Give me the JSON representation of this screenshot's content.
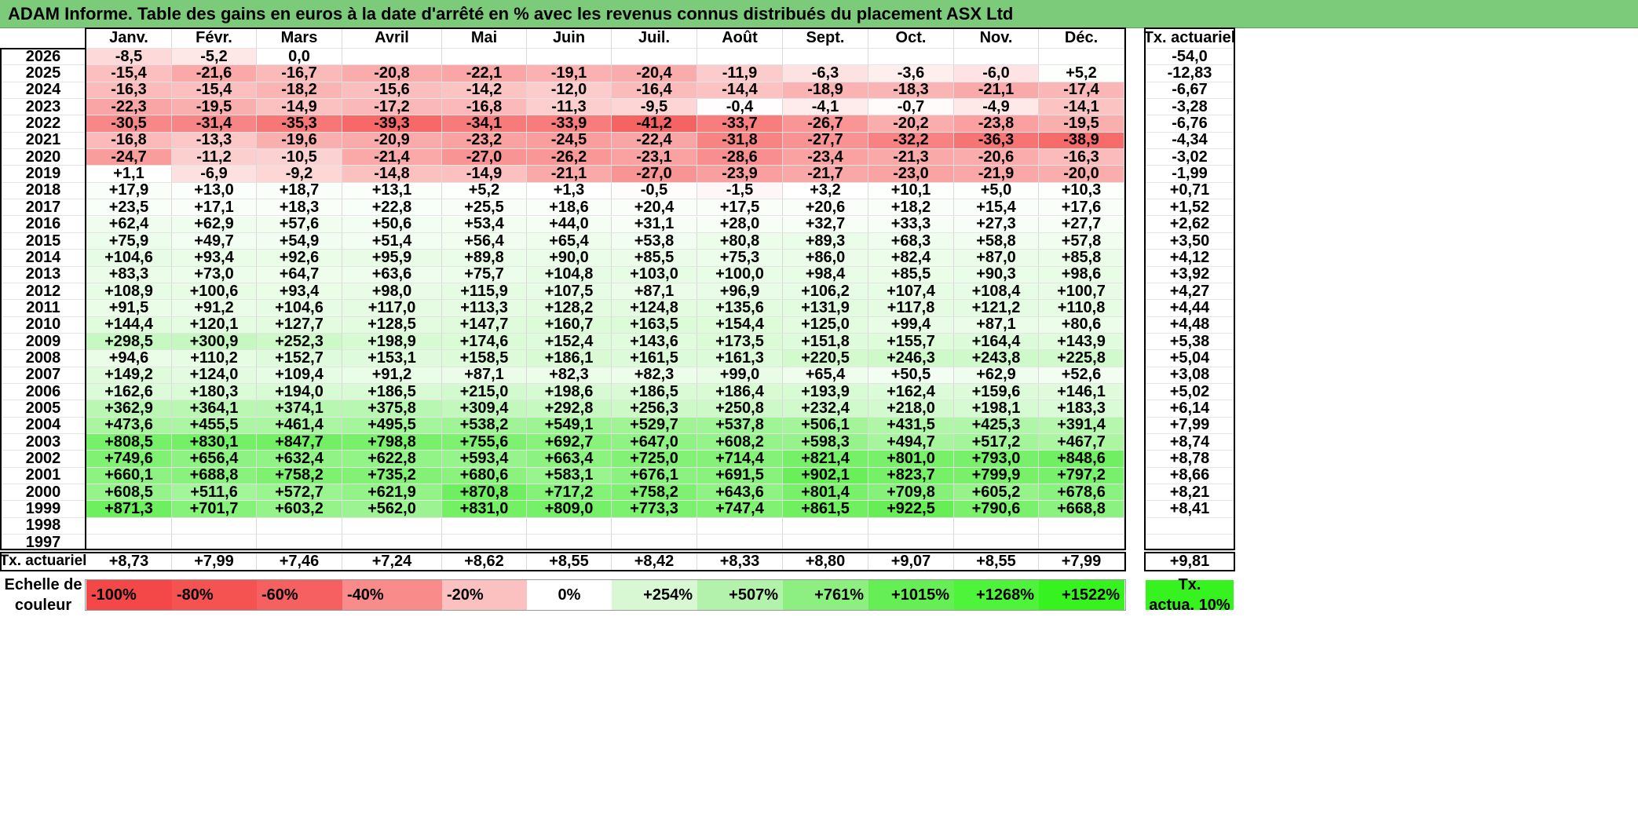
{
  "title": "ADAM Informe. Table des gains en euros à la date d'arrêté en % avec les revenus connus distribués du placement ASX Ltd",
  "months": [
    "Janv.",
    "Févr.",
    "Mars",
    "Avril",
    "Mai",
    "Juin",
    "Juil.",
    "Août",
    "Sept.",
    "Oct.",
    "Nov.",
    "Déc."
  ],
  "annual_header": "Tx. actuariel",
  "rows": [
    {
      "year": "2026",
      "values": [
        "-8,5",
        "-5,2",
        "0,0",
        "",
        "",
        "",
        "",
        "",
        "",
        "",
        "",
        ""
      ],
      "rate": "-54,0"
    },
    {
      "year": "2025",
      "values": [
        "-15,4",
        "-21,6",
        "-16,7",
        "-20,8",
        "-22,1",
        "-19,1",
        "-20,4",
        "-11,9",
        "-6,3",
        "-3,6",
        "-6,0",
        "+5,2"
      ],
      "rate": "-12,83"
    },
    {
      "year": "2024",
      "values": [
        "-16,3",
        "-15,4",
        "-18,2",
        "-15,6",
        "-14,2",
        "-12,0",
        "-16,4",
        "-14,4",
        "-18,9",
        "-18,3",
        "-21,1",
        "-17,4"
      ],
      "rate": "-6,67"
    },
    {
      "year": "2023",
      "values": [
        "-22,3",
        "-19,5",
        "-14,9",
        "-17,2",
        "-16,8",
        "-11,3",
        "-9,5",
        "-0,4",
        "-4,1",
        "-0,7",
        "-4,9",
        "-14,1"
      ],
      "rate": "-3,28"
    },
    {
      "year": "2022",
      "values": [
        "-30,5",
        "-31,4",
        "-35,3",
        "-39,3",
        "-34,1",
        "-33,9",
        "-41,2",
        "-33,7",
        "-26,7",
        "-20,2",
        "-23,8",
        "-19,5"
      ],
      "rate": "-6,76"
    },
    {
      "year": "2021",
      "values": [
        "-16,8",
        "-13,3",
        "-19,6",
        "-20,9",
        "-23,2",
        "-24,5",
        "-22,4",
        "-31,8",
        "-27,7",
        "-32,2",
        "-36,3",
        "-38,9"
      ],
      "rate": "-4,34"
    },
    {
      "year": "2020",
      "values": [
        "-24,7",
        "-11,2",
        "-10,5",
        "-21,4",
        "-27,0",
        "-26,2",
        "-23,1",
        "-28,6",
        "-23,4",
        "-21,3",
        "-20,6",
        "-16,3"
      ],
      "rate": "-3,02"
    },
    {
      "year": "2019",
      "values": [
        "+1,1",
        "-6,9",
        "-9,2",
        "-14,8",
        "-14,9",
        "-21,1",
        "-27,0",
        "-23,9",
        "-21,7",
        "-23,0",
        "-21,9",
        "-20,0"
      ],
      "rate": "-1,99"
    },
    {
      "year": "2018",
      "values": [
        "+17,9",
        "+13,0",
        "+18,7",
        "+13,1",
        "+5,2",
        "+1,3",
        "-0,5",
        "-1,5",
        "+3,2",
        "+10,1",
        "+5,0",
        "+10,3"
      ],
      "rate": "+0,71"
    },
    {
      "year": "2017",
      "values": [
        "+23,5",
        "+17,1",
        "+18,3",
        "+22,8",
        "+25,5",
        "+18,6",
        "+20,4",
        "+17,5",
        "+20,6",
        "+18,2",
        "+15,4",
        "+17,6"
      ],
      "rate": "+1,52"
    },
    {
      "year": "2016",
      "values": [
        "+62,4",
        "+62,9",
        "+57,6",
        "+50,6",
        "+53,4",
        "+44,0",
        "+31,1",
        "+28,0",
        "+32,7",
        "+33,3",
        "+27,3",
        "+27,7"
      ],
      "rate": "+2,62"
    },
    {
      "year": "2015",
      "values": [
        "+75,9",
        "+49,7",
        "+54,9",
        "+51,4",
        "+56,4",
        "+65,4",
        "+53,8",
        "+80,8",
        "+89,3",
        "+68,3",
        "+58,8",
        "+57,8"
      ],
      "rate": "+3,50"
    },
    {
      "year": "2014",
      "values": [
        "+104,6",
        "+93,4",
        "+92,6",
        "+95,9",
        "+89,8",
        "+90,0",
        "+85,5",
        "+75,3",
        "+86,0",
        "+82,4",
        "+87,0",
        "+85,8"
      ],
      "rate": "+4,12"
    },
    {
      "year": "2013",
      "values": [
        "+83,3",
        "+73,0",
        "+64,7",
        "+63,6",
        "+75,7",
        "+104,8",
        "+103,0",
        "+100,0",
        "+98,4",
        "+85,5",
        "+90,3",
        "+98,6"
      ],
      "rate": "+3,92"
    },
    {
      "year": "2012",
      "values": [
        "+108,9",
        "+100,6",
        "+93,4",
        "+98,0",
        "+115,9",
        "+107,5",
        "+87,1",
        "+96,9",
        "+106,2",
        "+107,4",
        "+108,4",
        "+100,7"
      ],
      "rate": "+4,27"
    },
    {
      "year": "2011",
      "values": [
        "+91,5",
        "+91,2",
        "+104,6",
        "+117,0",
        "+113,3",
        "+128,2",
        "+124,8",
        "+135,6",
        "+131,9",
        "+117,8",
        "+121,2",
        "+110,8"
      ],
      "rate": "+4,44"
    },
    {
      "year": "2010",
      "values": [
        "+144,4",
        "+120,1",
        "+127,7",
        "+128,5",
        "+147,7",
        "+160,7",
        "+163,5",
        "+154,4",
        "+125,0",
        "+99,4",
        "+87,1",
        "+80,6"
      ],
      "rate": "+4,48"
    },
    {
      "year": "2009",
      "values": [
        "+298,5",
        "+300,9",
        "+252,3",
        "+198,9",
        "+174,6",
        "+152,4",
        "+143,6",
        "+173,5",
        "+151,8",
        "+155,7",
        "+164,4",
        "+143,9"
      ],
      "rate": "+5,38"
    },
    {
      "year": "2008",
      "values": [
        "+94,6",
        "+110,2",
        "+152,7",
        "+153,1",
        "+158,5",
        "+186,1",
        "+161,5",
        "+161,3",
        "+220,5",
        "+246,3",
        "+243,8",
        "+225,8"
      ],
      "rate": "+5,04"
    },
    {
      "year": "2007",
      "values": [
        "+149,2",
        "+124,0",
        "+109,4",
        "+91,2",
        "+87,1",
        "+82,3",
        "+82,3",
        "+99,0",
        "+65,4",
        "+50,5",
        "+62,9",
        "+52,6"
      ],
      "rate": "+3,08"
    },
    {
      "year": "2006",
      "values": [
        "+162,6",
        "+180,3",
        "+194,0",
        "+186,5",
        "+215,0",
        "+198,6",
        "+186,5",
        "+186,4",
        "+193,9",
        "+162,4",
        "+159,6",
        "+146,1"
      ],
      "rate": "+5,02"
    },
    {
      "year": "2005",
      "values": [
        "+362,9",
        "+364,1",
        "+374,1",
        "+375,8",
        "+309,4",
        "+292,8",
        "+256,3",
        "+250,8",
        "+232,4",
        "+218,0",
        "+198,1",
        "+183,3"
      ],
      "rate": "+6,14"
    },
    {
      "year": "2004",
      "values": [
        "+473,6",
        "+455,5",
        "+461,4",
        "+495,5",
        "+538,2",
        "+549,1",
        "+529,7",
        "+537,8",
        "+506,1",
        "+431,5",
        "+425,3",
        "+391,4"
      ],
      "rate": "+7,99"
    },
    {
      "year": "2003",
      "values": [
        "+808,5",
        "+830,1",
        "+847,7",
        "+798,8",
        "+755,6",
        "+692,7",
        "+647,0",
        "+608,2",
        "+598,3",
        "+494,7",
        "+517,2",
        "+467,7"
      ],
      "rate": "+8,74"
    },
    {
      "year": "2002",
      "values": [
        "+749,6",
        "+656,4",
        "+632,4",
        "+622,8",
        "+593,4",
        "+663,4",
        "+725,0",
        "+714,4",
        "+821,4",
        "+801,0",
        "+793,0",
        "+848,6"
      ],
      "rate": "+8,78"
    },
    {
      "year": "2001",
      "values": [
        "+660,1",
        "+688,8",
        "+758,2",
        "+735,2",
        "+680,6",
        "+583,1",
        "+676,1",
        "+691,5",
        "+902,1",
        "+823,7",
        "+799,9",
        "+797,2"
      ],
      "rate": "+8,66"
    },
    {
      "year": "2000",
      "values": [
        "+608,5",
        "+511,6",
        "+572,7",
        "+621,9",
        "+870,8",
        "+717,2",
        "+758,2",
        "+643,6",
        "+801,4",
        "+709,8",
        "+605,2",
        "+678,6"
      ],
      "rate": "+8,21"
    },
    {
      "year": "1999",
      "values": [
        "+871,3",
        "+701,7",
        "+603,2",
        "+562,0",
        "+831,0",
        "+809,0",
        "+773,3",
        "+747,4",
        "+861,5",
        "+922,5",
        "+790,6",
        "+668,8"
      ],
      "rate": "+8,41"
    },
    {
      "year": "1998",
      "values": [
        "",
        "",
        "",
        "",
        "",
        "",
        "",
        "",
        "",
        "",
        "",
        ""
      ],
      "rate": ""
    },
    {
      "year": "1997",
      "values": [
        "",
        "",
        "",
        "",
        "",
        "",
        "",
        "",
        "",
        "",
        "",
        ""
      ],
      "rate": ""
    }
  ],
  "footer": {
    "label": "Tx. actuariel",
    "values": [
      "+8,73",
      "+7,99",
      "+7,46",
      "+7,24",
      "+8,62",
      "+8,55",
      "+8,42",
      "+8,33",
      "+8,80",
      "+9,07",
      "+8,55",
      "+7,99"
    ],
    "total": "+9,81"
  },
  "legend": {
    "title_line1": "Echelle de",
    "title_line2": "couleur",
    "items": [
      {
        "label": "-100%",
        "color": "#f44848",
        "align": "left"
      },
      {
        "label": "-80%",
        "color": "#f55252",
        "align": "left"
      },
      {
        "label": "-60%",
        "color": "#f76060",
        "align": "left"
      },
      {
        "label": "-40%",
        "color": "#f98b8b",
        "align": "left"
      },
      {
        "label": "-20%",
        "color": "#fbc1c1",
        "align": "left"
      },
      {
        "label": "0%",
        "color": "#ffffff",
        "align": "center"
      },
      {
        "label": "+254%",
        "color": "#d8f8d4",
        "align": "right"
      },
      {
        "label": "+507%",
        "color": "#b2f2aa",
        "align": "right"
      },
      {
        "label": "+761%",
        "color": "#8cef80",
        "align": "right"
      },
      {
        "label": "+1015%",
        "color": "#66ef55",
        "align": "right"
      },
      {
        "label": "+1268%",
        "color": "#4ef43a",
        "align": "right"
      },
      {
        "label": "+1522%",
        "color": "#36f21e",
        "align": "right"
      }
    ],
    "right_line1": "Tx.",
    "right_line2": "actua. 10%",
    "right_color": "#36f21e"
  }
}
